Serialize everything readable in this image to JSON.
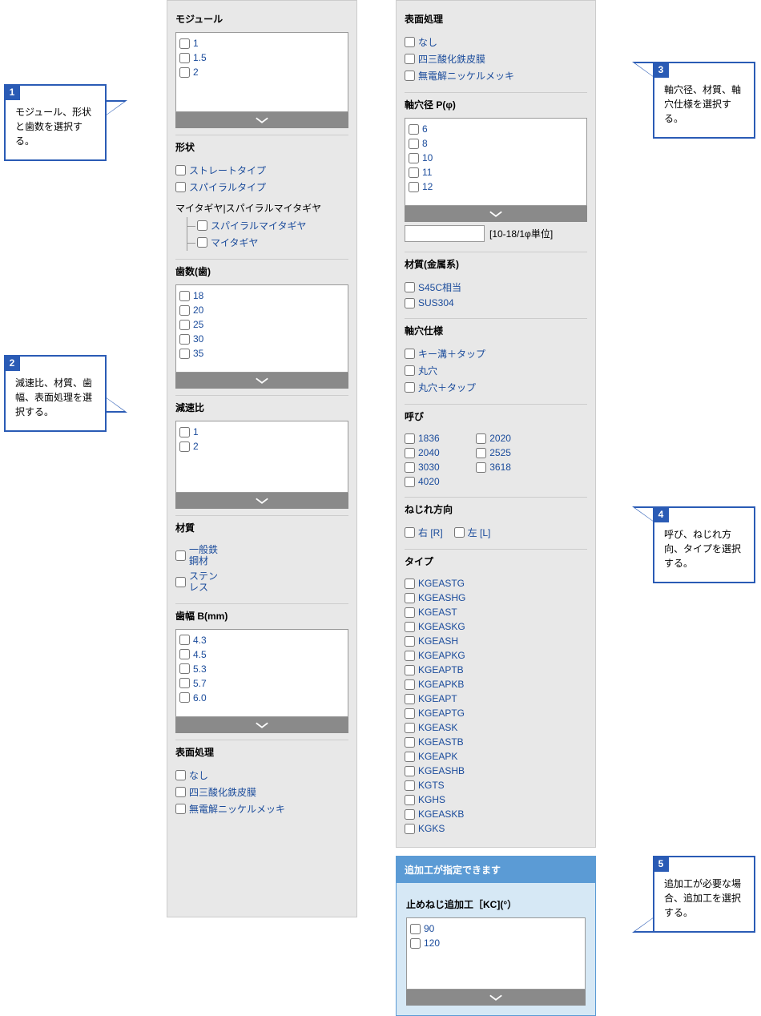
{
  "colors": {
    "accent": "#2a5bb5",
    "link": "#1a4b9b",
    "panel_bg": "#e8e8e8",
    "bar": "#8a8a8a",
    "add_header": "#5b9bd5",
    "add_body": "#d6e8f5"
  },
  "left": {
    "module": {
      "title": "モジュール",
      "items": [
        "1",
        "1.5",
        "2"
      ]
    },
    "shape": {
      "title": "形状",
      "items": [
        "ストレートタイプ",
        "スパイラルタイプ"
      ],
      "tree_head": "マイタギヤ|スパイラルマイタギヤ",
      "tree_items": [
        "スパイラルマイタギヤ",
        "マイタギヤ"
      ]
    },
    "teeth": {
      "title": "歯数(歯)",
      "items": [
        "18",
        "20",
        "25",
        "30",
        "35"
      ]
    },
    "ratio": {
      "title": "減速比",
      "items": [
        "1",
        "2"
      ]
    },
    "material": {
      "title": "材質",
      "items": [
        "一般鉄鋼材",
        "ステンレス"
      ]
    },
    "width": {
      "title": "歯幅 B(mm)",
      "items": [
        "4.3",
        "4.5",
        "5.3",
        "5.7",
        "6.0"
      ]
    },
    "surface": {
      "title": "表面処理",
      "items": [
        "なし",
        "四三酸化鉄皮膜",
        "無電解ニッケルメッキ"
      ]
    }
  },
  "right": {
    "surface": {
      "title": "表面処理",
      "items": [
        "なし",
        "四三酸化鉄皮膜",
        "無電解ニッケルメッキ"
      ]
    },
    "bore": {
      "title": "軸穴径 P(φ)",
      "items": [
        "6",
        "8",
        "10",
        "11",
        "12"
      ],
      "input_note": "[10-18/1φ単位]"
    },
    "metal": {
      "title": "材質(金属系)",
      "items": [
        "S45C相当",
        "SUS304"
      ]
    },
    "borespec": {
      "title": "軸穴仕様",
      "items": [
        "キー溝＋タップ",
        "丸穴",
        "丸穴＋タップ"
      ]
    },
    "nominal": {
      "title": "呼び",
      "items": [
        "1836",
        "2020",
        "2040",
        "2525",
        "3030",
        "3618",
        "4020"
      ]
    },
    "twist": {
      "title": "ねじれ方向",
      "items": [
        "右 [R]",
        "左 [L]"
      ]
    },
    "type": {
      "title": "タイプ",
      "items": [
        "KGEASTG",
        "KGEASHG",
        "KGEAST",
        "KGEASKG",
        "KGEASH",
        "KGEAPKG",
        "KGEAPTB",
        "KGEAPKB",
        "KGEAPT",
        "KGEAPTG",
        "KGEASK",
        "KGEASTB",
        "KGEAPK",
        "KGEASHB",
        "KGTS",
        "KGHS",
        "KGEASKB",
        "KGKS"
      ]
    }
  },
  "add": {
    "header": "追加工が指定できます",
    "section": "止めねじ追加工［KC](°）",
    "items": [
      "90",
      "120"
    ]
  },
  "callouts": {
    "c1": {
      "num": "1",
      "text": "モジュール、形状と歯数を選択する。"
    },
    "c2": {
      "num": "2",
      "text": "減速比、材質、歯幅、表面処理を選択する。"
    },
    "c3": {
      "num": "3",
      "text": "軸穴径、材質、軸穴仕様を選択する。"
    },
    "c4": {
      "num": "4",
      "text": "呼び、ねじれ方向、タイプを選択する。"
    },
    "c5": {
      "num": "5",
      "text": "追加工が必要な場合、追加工を選択する。"
    }
  }
}
